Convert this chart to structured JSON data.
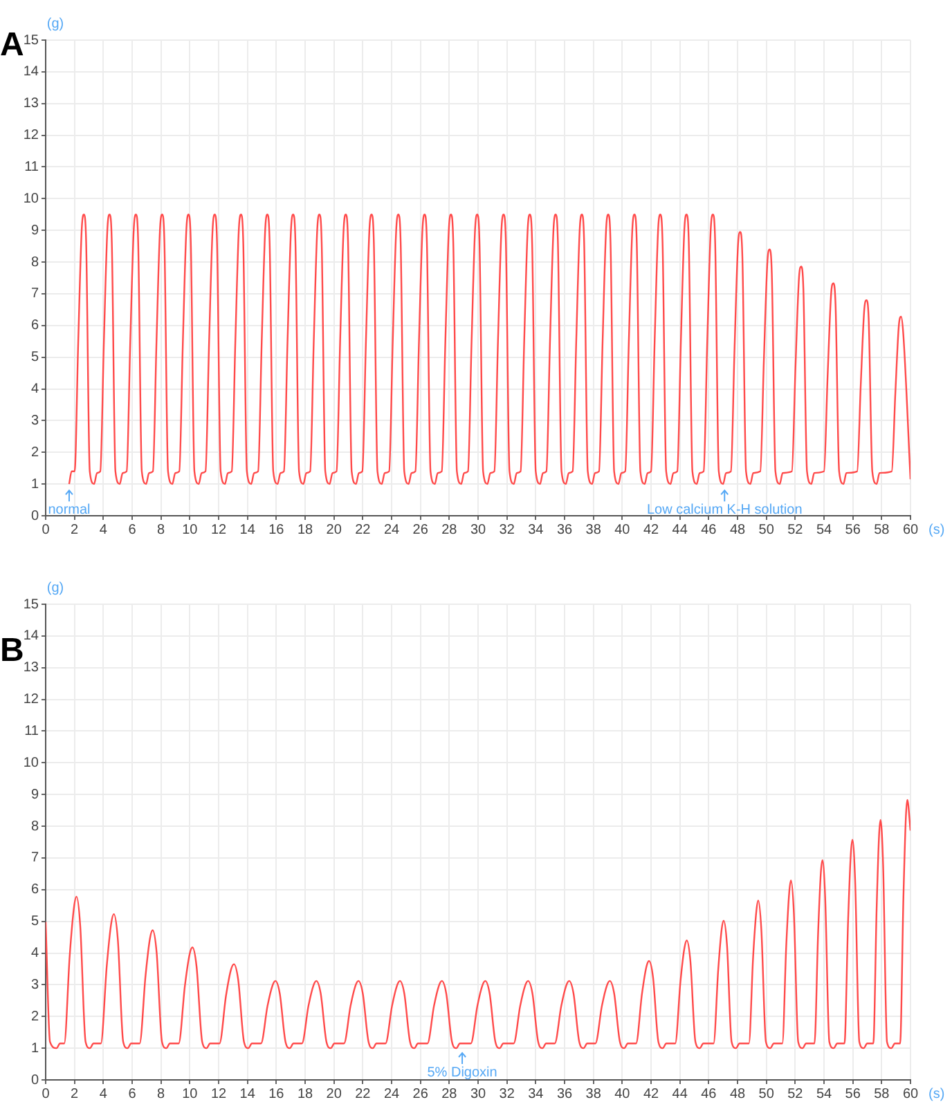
{
  "chart_data": [
    {
      "type": "line",
      "title": "A",
      "xlabel": "(s)",
      "ylabel": "(g)",
      "xlim": [
        0,
        60
      ],
      "ylim": [
        0,
        15
      ],
      "xticks": [
        0,
        2,
        4,
        6,
        8,
        10,
        12,
        14,
        16,
        18,
        20,
        22,
        24,
        26,
        28,
        30,
        32,
        34,
        36,
        38,
        40,
        42,
        44,
        46,
        48,
        50,
        52,
        54,
        56,
        58,
        60
      ],
      "yticks": [
        0,
        1,
        2,
        3,
        4,
        5,
        6,
        7,
        8,
        9,
        10,
        11,
        12,
        13,
        14,
        15
      ],
      "grid": true,
      "legend": false,
      "marker": "none",
      "line_style": "solid",
      "annotations": [
        {
          "text": "normal",
          "x": 1.63,
          "y": 0.8
        },
        {
          "text": "Low calcium K-H solution",
          "x": 47.1,
          "y": 0.8
        }
      ],
      "series": [
        {
          "color": "#ff4a4a",
          "x": [
            1.63,
            1.8,
            2.01,
            2.26,
            2.51,
            2.66,
            2.81,
            3.06,
            3.36,
            3.56,
            3.79,
            4.04,
            4.29,
            4.44,
            4.59,
            4.84,
            5.14,
            5.34,
            5.62,
            5.87,
            6.12,
            6.27,
            6.42,
            6.67,
            6.97,
            7.17,
            7.44,
            7.69,
            7.94,
            8.09,
            8.24,
            8.49,
            8.79,
            8.99,
            9.27,
            9.52,
            9.77,
            9.92,
            10.07,
            10.32,
            10.62,
            10.82,
            11.09,
            11.34,
            11.59,
            11.74,
            11.89,
            12.14,
            12.44,
            12.64,
            12.91,
            13.16,
            13.41,
            13.56,
            13.71,
            13.96,
            14.26,
            14.46,
            14.74,
            14.99,
            15.24,
            15.39,
            15.54,
            15.79,
            16.09,
            16.29,
            16.53,
            16.78,
            17.03,
            17.18,
            17.33,
            17.58,
            17.88,
            18.08,
            18.35,
            18.6,
            18.85,
            19.0,
            19.15,
            19.4,
            19.7,
            19.9,
            20.18,
            20.43,
            20.68,
            20.83,
            20.98,
            21.23,
            21.53,
            21.73,
            21.97,
            22.22,
            22.47,
            22.62,
            22.77,
            23.02,
            23.32,
            23.52,
            23.83,
            24.08,
            24.33,
            24.48,
            24.63,
            24.88,
            25.18,
            25.38,
            25.65,
            25.9,
            26.15,
            26.3,
            26.45,
            26.7,
            27.0,
            27.2,
            27.48,
            27.73,
            27.98,
            28.13,
            28.28,
            28.53,
            28.83,
            29.03,
            29.3,
            29.55,
            29.8,
            29.95,
            30.1,
            30.35,
            30.65,
            30.85,
            31.13,
            31.38,
            31.63,
            31.78,
            31.93,
            32.18,
            32.48,
            32.68,
            32.95,
            33.2,
            33.45,
            33.6,
            33.75,
            34.0,
            34.3,
            34.5,
            34.74,
            34.99,
            35.24,
            35.39,
            35.54,
            35.79,
            36.09,
            36.29,
            36.56,
            36.81,
            37.06,
            37.21,
            37.36,
            37.61,
            37.91,
            38.11,
            38.39,
            38.64,
            38.89,
            39.04,
            39.19,
            39.44,
            39.74,
            39.94,
            40.21,
            40.46,
            40.71,
            40.86,
            41.01,
            41.26,
            41.56,
            41.76,
            42.0,
            42.25,
            42.5,
            42.65,
            42.8,
            43.05,
            43.35,
            43.55,
            43.82,
            44.07,
            44.32,
            44.47,
            44.62,
            44.87,
            45.17,
            45.37,
            45.65,
            45.9,
            46.15,
            46.3,
            46.45,
            46.7,
            47.0,
            47.2,
            47.54,
            47.79,
            48.04,
            48.19,
            48.34,
            48.59,
            48.89,
            49.09,
            49.58,
            49.83,
            50.08,
            50.23,
            50.38,
            50.63,
            50.93,
            51.13,
            51.77,
            52.02,
            52.27,
            52.42,
            52.57,
            52.82,
            53.12,
            53.32,
            54.0,
            54.25,
            54.5,
            54.65,
            54.8,
            55.05,
            55.35,
            55.55,
            56.3,
            56.55,
            56.8,
            56.95,
            57.1,
            57.35,
            57.65,
            57.85,
            58.7,
            58.95,
            59.2,
            59.35,
            59.5,
            60
          ],
          "values": [
            1.0,
            1.4,
            1.4,
            5.5,
            9.1,
            9.5,
            8.6,
            1.4,
            1.0,
            1.35,
            1.4,
            5.5,
            9.1,
            9.5,
            8.6,
            1.4,
            1.0,
            1.35,
            1.4,
            5.5,
            9.1,
            9.5,
            8.6,
            1.4,
            1.0,
            1.35,
            1.4,
            5.5,
            9.1,
            9.5,
            8.6,
            1.4,
            1.0,
            1.35,
            1.4,
            5.5,
            9.1,
            9.5,
            8.6,
            1.4,
            1.0,
            1.35,
            1.4,
            5.5,
            9.1,
            9.5,
            8.6,
            1.4,
            1.0,
            1.35,
            1.4,
            5.5,
            9.1,
            9.5,
            8.6,
            1.4,
            1.0,
            1.35,
            1.4,
            5.5,
            9.1,
            9.5,
            8.6,
            1.4,
            1.0,
            1.35,
            1.4,
            5.5,
            9.1,
            9.5,
            8.6,
            1.4,
            1.0,
            1.35,
            1.4,
            5.5,
            9.1,
            9.5,
            8.6,
            1.4,
            1.0,
            1.35,
            1.4,
            5.5,
            9.1,
            9.5,
            8.6,
            1.4,
            1.0,
            1.35,
            1.4,
            5.5,
            9.1,
            9.5,
            8.6,
            1.4,
            1.0,
            1.35,
            1.4,
            5.5,
            9.1,
            9.5,
            8.6,
            1.4,
            1.0,
            1.35,
            1.4,
            5.5,
            9.1,
            9.5,
            8.6,
            1.4,
            1.0,
            1.35,
            1.4,
            5.5,
            9.1,
            9.5,
            8.6,
            1.4,
            1.0,
            1.35,
            1.4,
            5.5,
            9.1,
            9.5,
            8.6,
            1.4,
            1.0,
            1.35,
            1.4,
            5.5,
            9.1,
            9.5,
            8.6,
            1.4,
            1.0,
            1.35,
            1.4,
            5.5,
            9.1,
            9.5,
            8.6,
            1.4,
            1.0,
            1.35,
            1.4,
            5.5,
            9.1,
            9.5,
            8.6,
            1.4,
            1.0,
            1.35,
            1.4,
            5.5,
            9.1,
            9.5,
            8.6,
            1.4,
            1.0,
            1.35,
            1.4,
            5.5,
            9.1,
            9.5,
            8.6,
            1.4,
            1.0,
            1.35,
            1.4,
            5.5,
            9.1,
            9.5,
            8.6,
            1.4,
            1.0,
            1.35,
            1.4,
            5.5,
            9.1,
            9.5,
            8.6,
            1.4,
            1.0,
            1.35,
            1.4,
            5.5,
            9.1,
            9.5,
            8.6,
            1.4,
            1.0,
            1.35,
            1.4,
            5.5,
            9.1,
            9.5,
            8.6,
            1.4,
            1.0,
            1.35,
            1.4,
            5.22,
            8.58,
            8.95,
            8.11,
            1.4,
            1.0,
            1.35,
            1.4,
            4.94,
            8.06,
            8.4,
            7.62,
            1.4,
            1.0,
            1.35,
            1.4,
            4.67,
            7.54,
            7.86,
            7.14,
            1.4,
            1.0,
            1.35,
            1.4,
            4.4,
            7.04,
            7.33,
            6.67,
            1.4,
            1.0,
            1.35,
            1.4,
            4.13,
            6.54,
            6.8,
            6.2,
            1.4,
            1.0,
            1.35,
            1.4,
            3.87,
            6.04,
            6.28,
            5.74,
            1.15
          ]
        }
      ]
    },
    {
      "type": "line",
      "title": "B",
      "xlabel": "(s)",
      "ylabel": "(g)",
      "xlim": [
        0,
        60
      ],
      "ylim": [
        0,
        15
      ],
      "xticks": [
        0,
        2,
        4,
        6,
        8,
        10,
        12,
        14,
        16,
        18,
        20,
        22,
        24,
        26,
        28,
        30,
        32,
        34,
        36,
        38,
        40,
        42,
        44,
        46,
        48,
        50,
        52,
        54,
        56,
        58,
        60
      ],
      "yticks": [
        0,
        1,
        2,
        3,
        4,
        5,
        6,
        7,
        8,
        9,
        10,
        11,
        12,
        13,
        14,
        15
      ],
      "grid": true,
      "legend": false,
      "marker": "none",
      "line_style": "solid",
      "annotations": [
        {
          "text": "5% Digoxin",
          "x": 28.9,
          "y": 0.85
        }
      ],
      "series": [
        {
          "color": "#ff4a4a",
          "x": [
            0,
            0.3,
            0.75,
            1.0,
            1.29,
            1.67,
            1.97,
            2.14,
            2.4,
            2.77,
            3.07,
            3.32,
            3.83,
            4.24,
            4.55,
            4.73,
            5.01,
            5.38,
            5.68,
            5.93,
            6.52,
            6.93,
            7.24,
            7.42,
            7.7,
            8.07,
            8.37,
            8.62,
            9.23,
            9.66,
            9.99,
            10.18,
            10.47,
            10.86,
            11.16,
            11.41,
            12.06,
            12.51,
            12.86,
            13.06,
            13.36,
            13.76,
            14.06,
            14.31,
            14.94,
            15.39,
            15.74,
            15.94,
            16.24,
            16.64,
            16.94,
            17.19,
            17.78,
            18.23,
            18.58,
            18.78,
            19.08,
            19.48,
            19.78,
            20.03,
            20.7,
            21.15,
            21.5,
            21.7,
            22.0,
            22.4,
            22.7,
            22.95,
            23.58,
            24.03,
            24.38,
            24.58,
            24.88,
            25.28,
            25.58,
            25.83,
            26.49,
            26.94,
            27.29,
            27.49,
            27.79,
            28.19,
            28.49,
            28.74,
            29.5,
            29.95,
            30.3,
            30.5,
            30.8,
            31.2,
            31.5,
            31.75,
            32.47,
            32.92,
            33.27,
            33.47,
            33.77,
            34.17,
            34.47,
            34.72,
            35.32,
            35.77,
            36.12,
            36.32,
            36.62,
            37.02,
            37.32,
            37.57,
            38.14,
            38.59,
            38.94,
            39.14,
            39.44,
            39.84,
            40.14,
            40.39,
            40.96,
            41.37,
            41.68,
            41.86,
            42.14,
            42.51,
            42.81,
            43.06,
            43.68,
            44.04,
            44.32,
            44.48,
            44.73,
            45.08,
            45.38,
            45.63,
            46.34,
            46.66,
            46.9,
            47.04,
            47.27,
            47.59,
            47.89,
            48.14,
            48.79,
            49.08,
            49.31,
            49.44,
            49.65,
            49.97,
            50.27,
            50.52,
            51.11,
            51.38,
            51.59,
            51.71,
            51.91,
            52.21,
            52.51,
            52.76,
            53.34,
            53.59,
            53.78,
            53.89,
            54.08,
            54.37,
            54.67,
            54.92,
            55.42,
            55.67,
            55.86,
            55.97,
            56.16,
            56.45,
            56.75,
            57.0,
            57.42,
            57.65,
            57.82,
            57.92,
            58.1,
            58.37,
            58.67,
            58.92,
            59.28,
            59.51,
            59.68,
            59.78,
            60
          ],
          "values": [
            4.98,
            1.2,
            1.0,
            1.15,
            1.15,
            3.93,
            5.46,
            5.78,
            4.85,
            1.2,
            1.0,
            1.15,
            1.15,
            3.6,
            4.94,
            5.23,
            4.41,
            1.2,
            1.0,
            1.15,
            1.15,
            3.29,
            4.47,
            4.72,
            4.01,
            1.2,
            1.0,
            1.15,
            1.15,
            2.97,
            3.97,
            4.18,
            3.57,
            1.2,
            1.0,
            1.15,
            1.15,
            2.65,
            3.48,
            3.65,
            3.15,
            1.2,
            1.0,
            1.15,
            1.15,
            2.33,
            2.98,
            3.12,
            2.73,
            1.2,
            1.0,
            1.15,
            1.15,
            2.33,
            2.98,
            3.12,
            2.73,
            1.2,
            1.0,
            1.15,
            1.15,
            2.33,
            2.98,
            3.12,
            2.73,
            1.2,
            1.0,
            1.15,
            1.15,
            2.33,
            2.98,
            3.12,
            2.73,
            1.2,
            1.0,
            1.15,
            1.15,
            2.33,
            2.98,
            3.12,
            2.73,
            1.2,
            1.0,
            1.15,
            1.15,
            2.33,
            2.98,
            3.12,
            2.73,
            1.2,
            1.0,
            1.15,
            1.15,
            2.33,
            2.98,
            3.12,
            2.73,
            1.2,
            1.0,
            1.15,
            1.15,
            2.33,
            2.98,
            3.12,
            2.73,
            1.2,
            1.0,
            1.15,
            1.15,
            2.33,
            2.98,
            3.12,
            2.73,
            1.2,
            1.0,
            1.15,
            1.15,
            2.71,
            3.57,
            3.75,
            3.23,
            1.2,
            1.0,
            1.15,
            1.15,
            3.1,
            4.17,
            4.4,
            3.75,
            1.2,
            1.0,
            1.15,
            1.15,
            3.47,
            4.75,
            5.02,
            4.25,
            1.2,
            1.0,
            1.15,
            1.15,
            3.86,
            5.34,
            5.66,
            4.76,
            1.2,
            1.0,
            1.15,
            1.15,
            4.23,
            5.93,
            6.29,
            5.26,
            1.2,
            1.0,
            1.15,
            1.15,
            4.62,
            6.53,
            6.93,
            5.77,
            1.2,
            1.0,
            1.15,
            1.15,
            5.0,
            7.12,
            7.57,
            6.29,
            1.2,
            1.0,
            1.15,
            1.15,
            5.38,
            7.71,
            8.2,
            6.79,
            1.2,
            1.0,
            1.15,
            1.15,
            5.76,
            8.29,
            8.83,
            7.86
          ]
        }
      ]
    }
  ]
}
